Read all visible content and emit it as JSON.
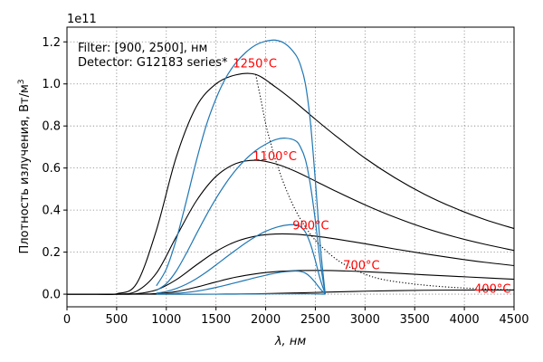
{
  "chart_data": {
    "type": "line",
    "xlabel": "λ, нм",
    "ylabel": "Плотность излучения, Вт/м",
    "ylabel_sup": "3",
    "offset_label": "1e11",
    "xlim": [
      0,
      4500
    ],
    "ylim": [
      -0.06,
      1.27
    ],
    "grid": true,
    "x_ticks": [
      0,
      500,
      1000,
      1500,
      2000,
      2500,
      3000,
      3500,
      4000,
      4500
    ],
    "y_ticks": [
      0.0,
      0.2,
      0.4,
      0.6,
      0.8,
      1.0,
      1.2
    ],
    "y_tick_labels": [
      "0.0",
      "0.2",
      "0.4",
      "0.6",
      "0.8",
      "1.0",
      "1.2"
    ],
    "note_lines": [
      "Filter: [900, 2500], нм",
      "Detector: G12183 series*"
    ],
    "temperatures_c": [
      400,
      700,
      900,
      1100,
      1250
    ],
    "annotations": [
      {
        "text": "400°C",
        "x": 4100,
        "y": 0.025
      },
      {
        "text": "700°C",
        "x": 2780,
        "y": 0.135
      },
      {
        "text": "900°C",
        "x": 2270,
        "y": 0.325
      },
      {
        "text": "1100°C",
        "x": 1870,
        "y": 0.655
      },
      {
        "text": "1250°C",
        "x": 1670,
        "y": 1.095
      }
    ],
    "colors": {
      "blackbody": "#000000",
      "filtered": "#1f77b4",
      "wien": "#000000",
      "annotation": "#ff0000"
    },
    "series_blackbody_x": [
      0,
      300,
      500,
      700,
      900,
      1100,
      1300,
      1500,
      1700,
      1900,
      2100,
      2300,
      2500,
      2700,
      3000,
      3300,
      3600,
      3900,
      4200,
      4500
    ],
    "series": [
      {
        "values": [
          0,
          0,
          0,
          0,
          0,
          0,
          0,
          0.0002,
          0.0007,
          0.0018,
          0.0036,
          0.0058,
          0.0083,
          0.0108,
          0.0142,
          0.0168,
          0.0186,
          0.0196,
          0.02,
          0.02
        ]
      },
      {
        "values": [
          0,
          0,
          0,
          0.0002,
          0.0025,
          0.0125,
          0.033,
          0.058,
          0.081,
          0.097,
          0.107,
          0.112,
          0.113,
          0.112,
          0.107,
          0.1,
          0.092,
          0.085,
          0.078,
          0.071
        ]
      },
      {
        "values": [
          0,
          0,
          0,
          0.002,
          0.02,
          0.069,
          0.138,
          0.203,
          0.25,
          0.276,
          0.286,
          0.285,
          0.276,
          0.263,
          0.24,
          0.215,
          0.192,
          0.171,
          0.152,
          0.136
        ]
      },
      {
        "values": [
          0,
          0,
          0,
          0.014,
          0.1,
          0.273,
          0.442,
          0.56,
          0.621,
          0.637,
          0.62,
          0.584,
          0.538,
          0.491,
          0.425,
          0.366,
          0.315,
          0.273,
          0.238,
          0.208
        ]
      },
      {
        "values": [
          0,
          0,
          0.002,
          0.05,
          0.304,
          0.652,
          0.89,
          1.0,
          1.043,
          1.045,
          0.985,
          0.912,
          0.832,
          0.755,
          0.647,
          0.554,
          0.475,
          0.41,
          0.356,
          0.312
        ]
      }
    ],
    "wien_curve": {
      "x": [
        1900,
        1950,
        2000,
        2050,
        2100,
        2200,
        2300,
        2400,
        2500,
        2600,
        2700,
        2800,
        3000,
        3200,
        3500,
        3800,
        4100,
        4500
      ],
      "values": [
        1.045,
        0.93,
        0.81,
        0.72,
        0.637,
        0.505,
        0.4,
        0.32,
        0.256,
        0.21,
        0.17,
        0.14,
        0.095,
        0.068,
        0.048,
        0.035,
        0.027,
        0.02
      ]
    },
    "filtered_x": [
      900,
      1000,
      1100,
      1200,
      1300,
      1400,
      1500,
      1600,
      1700,
      1800,
      1900,
      2000,
      2100,
      2200,
      2300,
      2350,
      2400,
      2450,
      2500,
      2550,
      2600
    ],
    "filtered_series": [
      {
        "values": [
          0,
          0,
          0,
          0,
          0,
          0,
          0.0001,
          0.0002,
          0.0004,
          0.0006,
          0.0009,
          0.0012,
          0.0015,
          0.0018,
          0.002,
          0.002,
          0.0019,
          0.0016,
          0.0012,
          0.0006,
          0.0
        ]
      },
      {
        "values": [
          0.001,
          0.002,
          0.004,
          0.008,
          0.014,
          0.022,
          0.032,
          0.043,
          0.055,
          0.067,
          0.079,
          0.09,
          0.1,
          0.107,
          0.11,
          0.108,
          0.1,
          0.082,
          0.055,
          0.025,
          0.0
        ]
      },
      {
        "values": [
          0.005,
          0.013,
          0.027,
          0.047,
          0.073,
          0.104,
          0.139,
          0.175,
          0.21,
          0.244,
          0.274,
          0.299,
          0.317,
          0.328,
          0.33,
          0.321,
          0.295,
          0.24,
          0.16,
          0.07,
          0.0
        ]
      },
      {
        "values": [
          0.018,
          0.05,
          0.11,
          0.193,
          0.284,
          0.373,
          0.455,
          0.528,
          0.591,
          0.642,
          0.683,
          0.713,
          0.735,
          0.742,
          0.73,
          0.7,
          0.64,
          0.52,
          0.35,
          0.15,
          0.0
        ]
      },
      {
        "values": [
          0.04,
          0.12,
          0.26,
          0.44,
          0.63,
          0.8,
          0.93,
          1.03,
          1.1,
          1.15,
          1.185,
          1.203,
          1.208,
          1.19,
          1.14,
          1.09,
          1.0,
          0.82,
          0.54,
          0.23,
          0.0
        ]
      }
    ]
  }
}
